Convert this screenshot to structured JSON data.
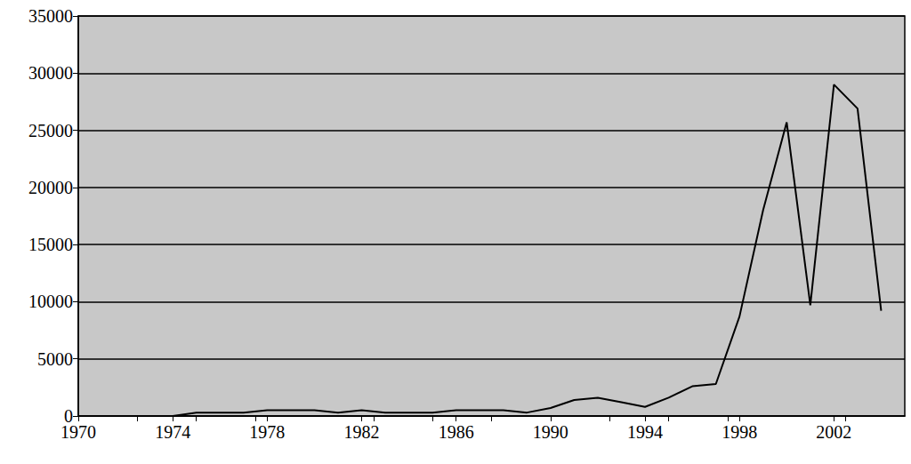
{
  "chart_data": {
    "type": "line",
    "x": [
      1974,
      1975,
      1976,
      1977,
      1978,
      1979,
      1980,
      1981,
      1982,
      1983,
      1984,
      1985,
      1986,
      1987,
      1988,
      1989,
      1990,
      1991,
      1992,
      1993,
      1994,
      1995,
      1996,
      1997,
      1998,
      1999,
      2000,
      2001,
      2002,
      2003,
      2004
    ],
    "values": [
      0,
      300,
      300,
      300,
      500,
      500,
      500,
      300,
      500,
      300,
      300,
      300,
      500,
      500,
      500,
      300,
      700,
      1400,
      1600,
      1200,
      800,
      1600,
      2600,
      2800,
      8700,
      18000,
      25700,
      9700,
      29000,
      26900,
      9200
    ],
    "color": "#000000",
    "xlim": [
      1970,
      2005
    ],
    "xticks": [
      1970,
      1974,
      1978,
      1982,
      1986,
      1990,
      1994,
      1998,
      2002
    ],
    "ylim": [
      0,
      35000
    ],
    "yticks": [
      0,
      5000,
      10000,
      15000,
      20000,
      25000,
      30000,
      35000
    ],
    "grid": true
  }
}
